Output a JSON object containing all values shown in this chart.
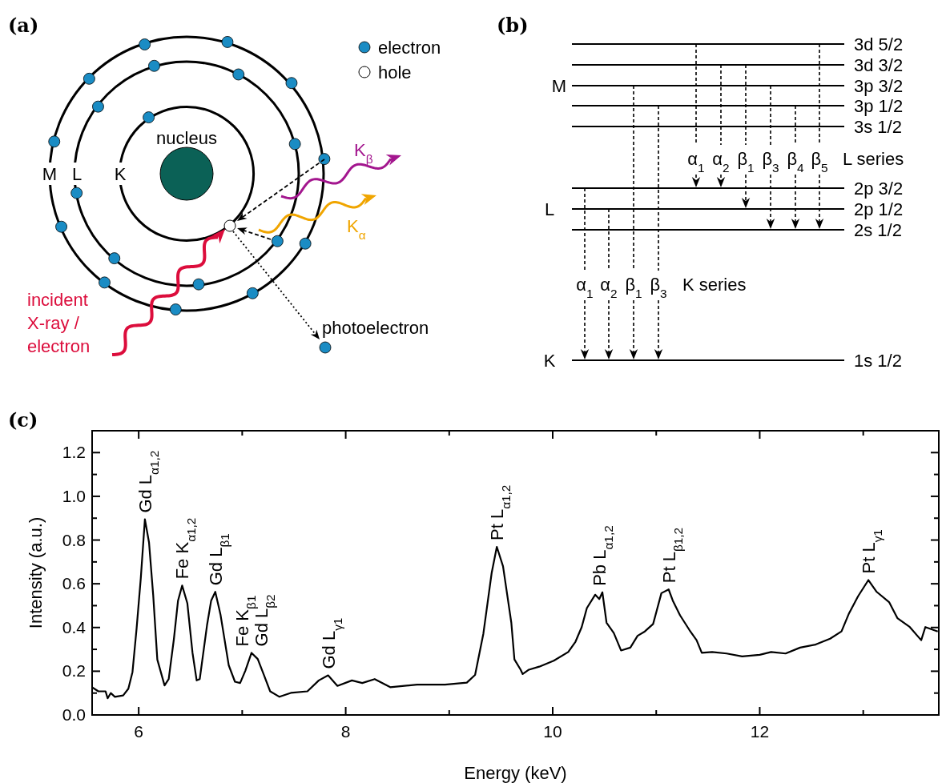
{
  "chart_data": [
    {
      "type": "other",
      "title": "(a)",
      "annotations": [
        "electron",
        "hole",
        "nucleus",
        "M",
        "L",
        "K",
        "K$_{β}$",
        "K$_{α}$",
        "incident X-ray / electron",
        "photoelectron"
      ]
    },
    {
      "type": "other",
      "title": "(b)",
      "annotations": [
        "M",
        "L",
        "K",
        "3d 5/2",
        "3d 3/2",
        "3p 3/2",
        "3p 1/2",
        "3s 1/2",
        "2p 3/2",
        "2p 1/2",
        "2s 1/2",
        "1s 1/2",
        "α$_{1}$",
        "α$_{2}$",
        "β$_{1}$",
        "β$_{3}$",
        "β$_{4}$",
        "β$_{5}$",
        "L series",
        "α$_{1}$",
        "α$_{2}$",
        "β$_{1}$",
        "β$_{3}$",
        "K series"
      ]
    },
    {
      "type": "line",
      "title": "(c)",
      "xlabel": "Energy (keV)",
      "ylabel": "Intensity (a.u.)",
      "xlim": [
        5.55,
        13.73
      ],
      "ylim": [
        0,
        1.3
      ],
      "xticks": [
        6,
        {
          "value": 7,
          "label": null
        },
        8,
        {
          "value": 9,
          "label": null
        },
        10,
        {
          "value": 11,
          "label": null
        },
        12,
        {
          "value": 13,
          "label": null
        }
      ],
      "yticks": [
        {
          "value": 0,
          "label": "0.0"
        },
        {
          "value": 0.1,
          "label": null
        },
        0.2,
        {
          "value": 0.3,
          "label": null
        },
        0.4,
        {
          "value": 0.5,
          "label": null
        },
        0.6,
        {
          "value": 0.7,
          "label": null
        },
        0.8,
        {
          "value": 0.9,
          "label": null
        },
        {
          "value": 1,
          "label": "1.0"
        },
        {
          "value": 1.1,
          "label": null
        },
        1.2
      ],
      "x": [
        5.55,
        5.61,
        5.68,
        5.7,
        5.73,
        5.77,
        5.85,
        5.9,
        5.94,
        5.98,
        6.02,
        6.06,
        6.1,
        6.14,
        6.18,
        6.25,
        6.29,
        6.34,
        6.38,
        6.42,
        6.47,
        6.52,
        6.56,
        6.59,
        6.66,
        6.7,
        6.74,
        6.79,
        6.87,
        6.93,
        6.98,
        7.03,
        7.09,
        7.15,
        7.21,
        7.27,
        7.36,
        7.47,
        7.63,
        7.74,
        7.83,
        7.92,
        8.06,
        8.16,
        8.28,
        8.43,
        8.69,
        8.96,
        9.17,
        9.25,
        9.33,
        9.41,
        9.46,
        9.52,
        9.6,
        9.63,
        9.69,
        9.71,
        9.77,
        9.87,
        10.01,
        10.15,
        10.22,
        10.28,
        10.33,
        10.41,
        10.45,
        10.48,
        10.52,
        10.59,
        10.66,
        10.75,
        10.82,
        10.89,
        10.97,
        11.05,
        11.12,
        11.16,
        11.23,
        11.32,
        11.39,
        11.44,
        11.54,
        11.68,
        11.83,
        12.0,
        12.11,
        12.25,
        12.39,
        12.54,
        12.68,
        12.79,
        12.86,
        12.95,
        13.05,
        13.13,
        13.25,
        13.33,
        13.45,
        13.56,
        13.6,
        13.72
      ],
      "series": [
        {
          "color": "#000000",
          "values": [
            0.127,
            0.108,
            0.108,
            0.076,
            0.1,
            0.083,
            0.089,
            0.12,
            0.196,
            0.397,
            0.624,
            0.895,
            0.788,
            0.549,
            0.253,
            0.135,
            0.164,
            0.347,
            0.523,
            0.592,
            0.511,
            0.284,
            0.158,
            0.164,
            0.41,
            0.523,
            0.563,
            0.46,
            0.227,
            0.152,
            0.146,
            0.202,
            0.284,
            0.256,
            0.183,
            0.108,
            0.083,
            0.101,
            0.108,
            0.158,
            0.181,
            0.133,
            0.158,
            0.146,
            0.164,
            0.127,
            0.139,
            0.139,
            0.148,
            0.183,
            0.372,
            0.649,
            0.769,
            0.68,
            0.422,
            0.254,
            0.207,
            0.187,
            0.207,
            0.221,
            0.248,
            0.288,
            0.335,
            0.402,
            0.489,
            0.55,
            0.53,
            0.561,
            0.422,
            0.375,
            0.295,
            0.308,
            0.362,
            0.382,
            0.416,
            0.557,
            0.574,
            0.523,
            0.456,
            0.389,
            0.342,
            0.284,
            0.288,
            0.281,
            0.268,
            0.275,
            0.288,
            0.281,
            0.308,
            0.322,
            0.349,
            0.382,
            0.462,
            0.543,
            0.617,
            0.563,
            0.516,
            0.443,
            0.402,
            0.342,
            0.402,
            0.382
          ]
        }
      ],
      "line_style": "solid",
      "annotations": [
        {
          "text": "Gd L$_{α1,2}$",
          "x": 6.06,
          "y": 0.895
        },
        {
          "text": "Fe K$_{α1,2}$",
          "x": 6.42,
          "y": 0.592
        },
        {
          "text": "Gd L$_{β1}$",
          "x": 6.74,
          "y": 0.563
        },
        {
          "text": "Fe K$_{β1}$",
          "x": 7.09,
          "y": 0.284
        },
        {
          "text": "Gd L$_{β2}$",
          "x": 7.09,
          "y": 0.284
        },
        {
          "text": "Gd L$_{γ1}$",
          "x": 7.83,
          "y": 0.181
        },
        {
          "text": "Pt L$_{α1,2}$",
          "x": 9.46,
          "y": 0.769
        },
        {
          "text": "Pb L$_{α1,2}$",
          "x": 10.45,
          "y": 0.561
        },
        {
          "text": "Pt L$_{β1,2}$",
          "x": 11.12,
          "y": 0.574
        },
        {
          "text": "Pt L$_{γ1}$",
          "x": 13.05,
          "y": 0.617
        }
      ]
    }
  ]
}
